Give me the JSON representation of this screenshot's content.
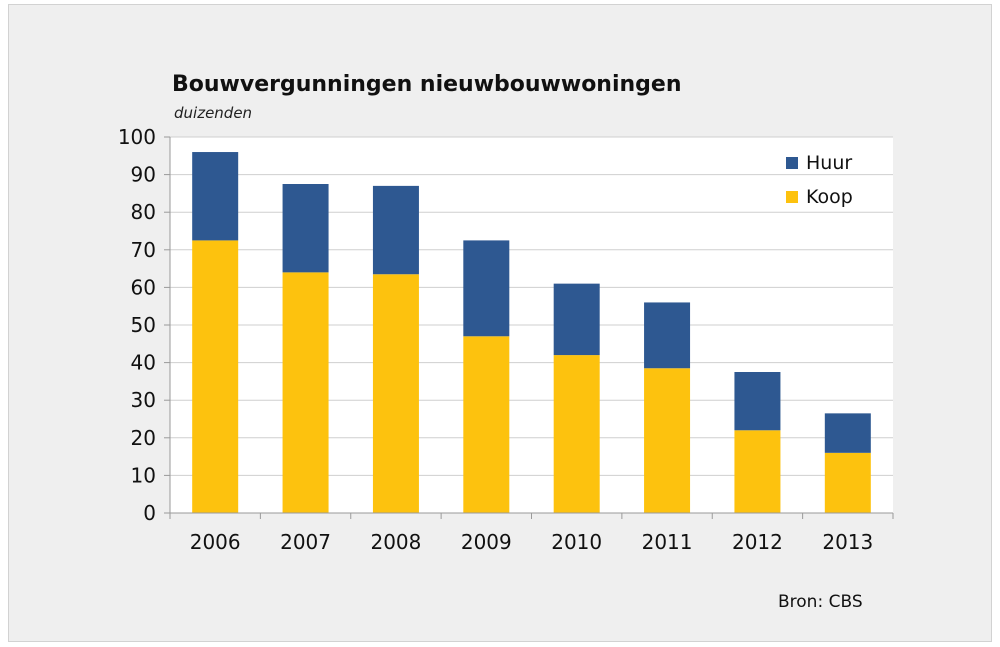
{
  "chart_data": {
    "type": "bar",
    "stacked": true,
    "title": "Bouwvergunningen nieuwbouwwoningen",
    "subtitle": "duizenden",
    "categories": [
      "2006",
      "2007",
      "2008",
      "2009",
      "2010",
      "2011",
      "2012",
      "2013"
    ],
    "series": [
      {
        "name": "Koop",
        "color": "#fdc20e",
        "values": [
          72.5,
          64,
          63.5,
          47,
          42,
          38.5,
          22,
          16
        ]
      },
      {
        "name": "Huur",
        "color": "#2e5891",
        "values": [
          23.5,
          23.5,
          23.5,
          25.5,
          19,
          17.5,
          15.5,
          10.5
        ]
      }
    ],
    "ylim": [
      0,
      100
    ],
    "yticks": [
      0,
      10,
      20,
      30,
      40,
      50,
      60,
      70,
      80,
      90,
      100
    ],
    "grid": true,
    "legend": {
      "placement": "top-right",
      "items": [
        {
          "label": "Huur",
          "color": "#2e5891"
        },
        {
          "label": "Koop",
          "color": "#fdc20e"
        }
      ]
    },
    "source": "Bron: CBS"
  }
}
